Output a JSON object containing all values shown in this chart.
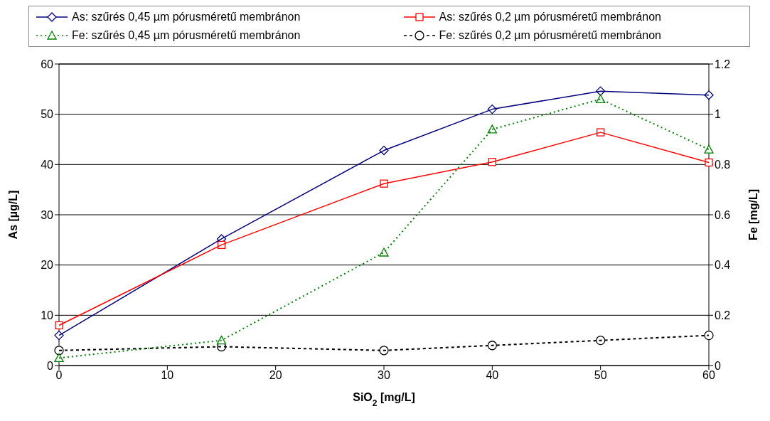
{
  "chart_data": {
    "type": "line",
    "xlabel": "SiO$_{2}$ [mg/L]",
    "ylabel": "As [µg/L]",
    "y2label": "Fe [mg/L]",
    "x": [
      0,
      15,
      30,
      40,
      50,
      60
    ],
    "series": [
      {
        "name": "As: szűrés 0,45 µm pórusméretű membránon",
        "color": "#000080",
        "marker": "diamond",
        "line_style": "solid",
        "values": [
          6,
          25.2,
          42.8,
          51,
          54.6,
          53.8
        ]
      },
      {
        "name": "As: szűrés 0,2 µm pórusméretű membránon",
        "color": "#ff0000",
        "marker": "square",
        "line_style": "solid",
        "values": [
          8,
          24,
          36.2,
          40.5,
          46.4,
          40.4
        ]
      },
      {
        "name": "Fe: szűrés 0,45 µm pórusméretű membránon",
        "color": "#008000",
        "marker": "triangle",
        "line_style": "dotted",
        "axis": "y2",
        "values": [
          0.03,
          0.1,
          0.45,
          0.94,
          1.06,
          0.86
        ]
      },
      {
        "name": "Fe: szűrés 0,2 µm pórusméretű membránon",
        "color": "#000000",
        "marker": "circle",
        "line_style": "dashed",
        "axis": "y2",
        "values": [
          0.06,
          0.075,
          0.06,
          0.08,
          0.1,
          0.12
        ]
      }
    ],
    "xlim": [
      0,
      60
    ],
    "xticks": [
      0,
      10,
      20,
      30,
      40,
      50,
      60
    ],
    "ylim": [
      0,
      60
    ],
    "yticks": [
      0,
      10,
      20,
      30,
      40,
      50,
      60
    ],
    "y2lim": [
      0,
      1.2
    ],
    "y2ticks": [
      0,
      0.2,
      0.4,
      0.6,
      0.8,
      1,
      1.2
    ],
    "grid": "y",
    "legend": "top"
  }
}
